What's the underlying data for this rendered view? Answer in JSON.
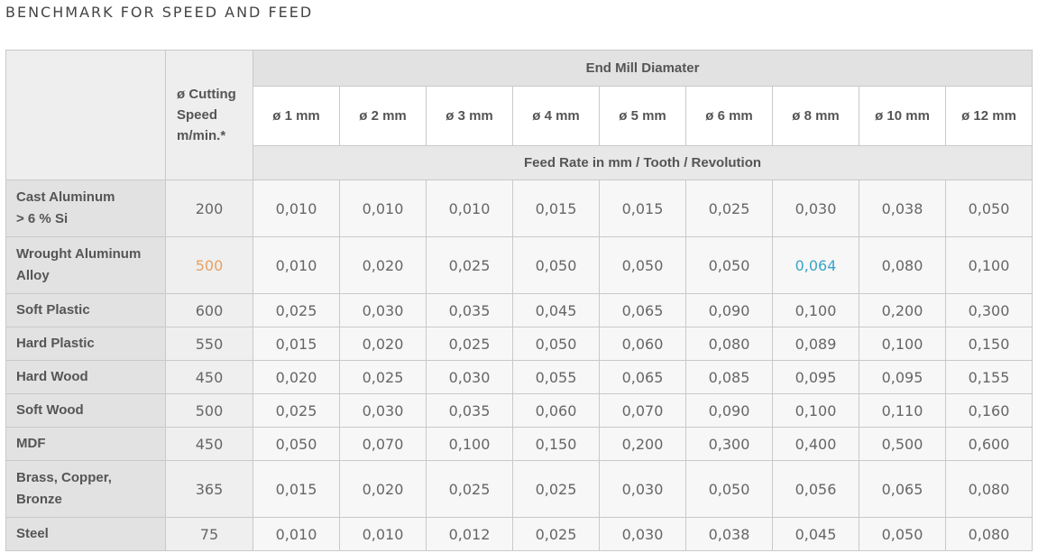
{
  "page_title": "BENCHMARK FOR SPEED AND FEED",
  "table": {
    "speed_header": [
      "ø Cutting",
      "Speed",
      "m/min.*"
    ],
    "group_header": "End Mill Diamater",
    "diameters": [
      "ø 1 mm",
      "ø 2 mm",
      "ø 3 mm",
      "ø 4 mm",
      "ø 5 mm",
      "ø 6 mm",
      "ø 8 mm",
      "ø 10 mm",
      "ø 12 mm"
    ],
    "feed_header": "Feed Rate in mm / Tooth / Revolution",
    "highlight_colors": {
      "orange": "#e8a060",
      "blue": "#3ba3c9"
    },
    "rows": [
      {
        "material": [
          "Cast Aluminum",
          "> 6 % Si"
        ],
        "speed": "200",
        "feeds": [
          "0,010",
          "0,010",
          "0,010",
          "0,015",
          "0,015",
          "0,025",
          "0,030",
          "0,038",
          "0,050"
        ]
      },
      {
        "material": [
          "Wrought Aluminum",
          "Alloy"
        ],
        "speed": "500",
        "feeds": [
          "0,010",
          "0,020",
          "0,025",
          "0,050",
          "0,050",
          "0,050",
          "0,064",
          "0,080",
          "0,100"
        ]
      },
      {
        "material": [
          "Soft Plastic"
        ],
        "speed": "600",
        "feeds": [
          "0,025",
          "0,030",
          "0,035",
          "0,045",
          "0,065",
          "0,090",
          "0,100",
          "0,200",
          "0,300"
        ]
      },
      {
        "material": [
          "Hard Plastic"
        ],
        "speed": "550",
        "feeds": [
          "0,015",
          "0,020",
          "0,025",
          "0,050",
          "0,060",
          "0,080",
          "0,089",
          "0,100",
          "0,150"
        ]
      },
      {
        "material": [
          "Hard Wood"
        ],
        "speed": "450",
        "feeds": [
          "0,020",
          "0,025",
          "0,030",
          "0,055",
          "0,065",
          "0,085",
          "0,095",
          "0,095",
          "0,155"
        ]
      },
      {
        "material": [
          "Soft Wood"
        ],
        "speed": "500",
        "feeds": [
          "0,025",
          "0,030",
          "0,035",
          "0,060",
          "0,070",
          "0,090",
          "0,100",
          "0,110",
          "0,160"
        ]
      },
      {
        "material": [
          "MDF"
        ],
        "speed": "450",
        "feeds": [
          "0,050",
          "0,070",
          "0,100",
          "0,150",
          "0,200",
          "0,300",
          "0,400",
          "0,500",
          "0,600"
        ]
      },
      {
        "material": [
          "Brass, Copper,",
          "Bronze"
        ],
        "speed": "365",
        "feeds": [
          "0,015",
          "0,020",
          "0,025",
          "0,025",
          "0,030",
          "0,050",
          "0,056",
          "0,065",
          "0,080"
        ]
      },
      {
        "material": [
          "Steel"
        ],
        "speed": "75",
        "feeds": [
          "0,010",
          "0,010",
          "0,012",
          "0,025",
          "0,030",
          "0,038",
          "0,045",
          "0,050",
          "0,080"
        ]
      }
    ]
  }
}
